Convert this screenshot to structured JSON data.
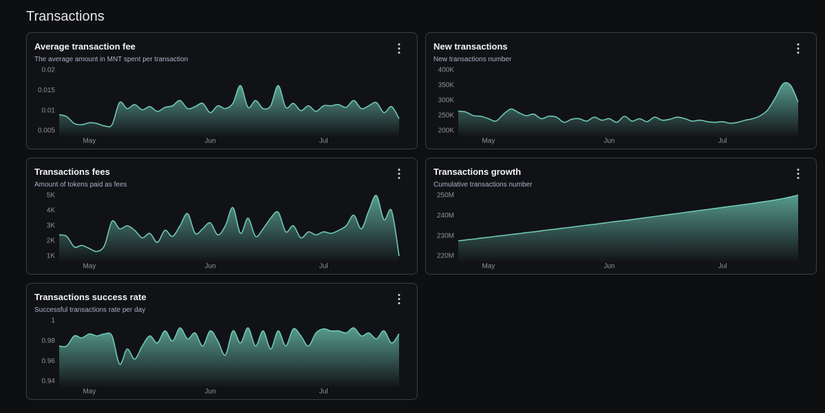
{
  "title": "Transactions",
  "chart_data": [
    {
      "type": "area",
      "title": "Average transaction fee",
      "subtitle": "The average amount in MNT spent per transaction",
      "color": "#6fc9b6",
      "categories": [
        null,
        null,
        null,
        null,
        "May",
        null,
        null,
        null,
        null,
        null,
        null,
        null,
        null,
        null,
        null,
        null,
        null,
        null,
        null,
        null,
        "Jun",
        null,
        null,
        null,
        null,
        null,
        null,
        null,
        null,
        null,
        null,
        null,
        null,
        null,
        null,
        "Jul",
        null,
        null,
        null,
        null,
        null,
        null,
        null,
        null,
        null,
        null
      ],
      "values": [
        0.009,
        0.0085,
        0.0068,
        0.0065,
        0.007,
        0.0068,
        0.0062,
        0.0065,
        0.012,
        0.0105,
        0.0115,
        0.0102,
        0.011,
        0.0098,
        0.0108,
        0.0112,
        0.0125,
        0.0105,
        0.011,
        0.0118,
        0.0095,
        0.0112,
        0.0105,
        0.0118,
        0.0162,
        0.0108,
        0.0125,
        0.0105,
        0.0112,
        0.0162,
        0.0108,
        0.0118,
        0.01,
        0.0112,
        0.0098,
        0.0112,
        0.0112,
        0.0115,
        0.0108,
        0.0125,
        0.0105,
        0.0112,
        0.012,
        0.0095,
        0.011,
        0.008
      ],
      "ylim": [
        0.005,
        0.02
      ],
      "yticks": [
        0.005,
        0.01,
        0.015,
        0.02
      ]
    },
    {
      "type": "area",
      "title": "New transactions",
      "subtitle": "New transactions number",
      "color": "#6fc9b6",
      "categories": [
        null,
        null,
        null,
        null,
        "May",
        null,
        null,
        null,
        null,
        null,
        null,
        null,
        null,
        null,
        null,
        null,
        null,
        null,
        null,
        null,
        "Jun",
        null,
        null,
        null,
        null,
        null,
        null,
        null,
        null,
        null,
        null,
        null,
        null,
        null,
        null,
        "Jul",
        null,
        null,
        null,
        null,
        null,
        null,
        null,
        null,
        null,
        null
      ],
      "values": [
        265000,
        262000,
        250000,
        248000,
        240000,
        232000,
        255000,
        272000,
        260000,
        250000,
        255000,
        240000,
        248000,
        245000,
        228000,
        238000,
        240000,
        232000,
        245000,
        235000,
        240000,
        228000,
        248000,
        232000,
        240000,
        230000,
        245000,
        235000,
        238000,
        245000,
        240000,
        232000,
        235000,
        230000,
        228000,
        230000,
        225000,
        228000,
        235000,
        240000,
        250000,
        270000,
        310000,
        355000,
        350000,
        295000
      ],
      "ylim": [
        200000,
        400000
      ],
      "yticks": [
        {
          "value": 200000,
          "label": "200K"
        },
        {
          "value": 250000,
          "label": "250K"
        },
        {
          "value": 300000,
          "label": "300K"
        },
        {
          "value": 350000,
          "label": "350K"
        },
        {
          "value": 400000,
          "label": "400K"
        }
      ]
    },
    {
      "type": "area",
      "title": "Transactions fees",
      "subtitle": "Amount of tokens paid as fees",
      "color": "#6fc9b6",
      "categories": [
        null,
        null,
        null,
        null,
        "May",
        null,
        null,
        null,
        null,
        null,
        null,
        null,
        null,
        null,
        null,
        null,
        null,
        null,
        null,
        null,
        "Jun",
        null,
        null,
        null,
        null,
        null,
        null,
        null,
        null,
        null,
        null,
        null,
        null,
        null,
        null,
        "Jul",
        null,
        null,
        null,
        null,
        null,
        null,
        null,
        null,
        null,
        null
      ],
      "values": [
        2400,
        2300,
        1600,
        1700,
        1500,
        1300,
        1700,
        3300,
        2800,
        3000,
        2700,
        2200,
        2500,
        1900,
        2700,
        2300,
        3000,
        3800,
        2500,
        2800,
        3200,
        2400,
        3000,
        4200,
        2500,
        3500,
        2300,
        2800,
        3500,
        3900,
        2600,
        3000,
        2200,
        2600,
        2400,
        2600,
        2500,
        2700,
        3000,
        3700,
        2800,
        4000,
        5000,
        3400,
        4000,
        1000
      ],
      "ylim": [
        1000,
        5000
      ],
      "yticks": [
        {
          "value": 1000,
          "label": "1K"
        },
        {
          "value": 2000,
          "label": "2K"
        },
        {
          "value": 3000,
          "label": "3K"
        },
        {
          "value": 4000,
          "label": "4K"
        },
        {
          "value": 5000,
          "label": "5K"
        }
      ]
    },
    {
      "type": "area",
      "title": "Transactions growth",
      "subtitle": "Cumulative transactions number",
      "color": "#6fc9b6",
      "categories": [
        null,
        null,
        null,
        null,
        "May",
        null,
        null,
        null,
        null,
        null,
        null,
        null,
        null,
        null,
        null,
        null,
        null,
        null,
        null,
        null,
        "Jun",
        null,
        null,
        null,
        null,
        null,
        null,
        null,
        null,
        null,
        null,
        null,
        null,
        null,
        null,
        "Jul",
        null,
        null,
        null,
        null,
        null,
        null,
        null,
        null,
        null,
        null
      ],
      "values": [
        227500000,
        228000000,
        228400000,
        228900000,
        229300000,
        229800000,
        230200000,
        230700000,
        231100000,
        231600000,
        232000000,
        232500000,
        233000000,
        233400000,
        233900000,
        234300000,
        234800000,
        235300000,
        235700000,
        236200000,
        236700000,
        237200000,
        237600000,
        238100000,
        238600000,
        239100000,
        239600000,
        240100000,
        240600000,
        241100000,
        241600000,
        242100000,
        242600000,
        243100000,
        243600000,
        244100000,
        244600000,
        245100000,
        245600000,
        246100000,
        246700000,
        247200000,
        247800000,
        248500000,
        249300000,
        250200000
      ],
      "ylim": [
        220000000,
        250000000
      ],
      "yticks": [
        {
          "value": 220000000,
          "label": "220M"
        },
        {
          "value": 230000000,
          "label": "230M"
        },
        {
          "value": 240000000,
          "label": "240M"
        },
        {
          "value": 250000000,
          "label": "250M"
        }
      ]
    },
    {
      "type": "area",
      "title": "Transactions success rate",
      "subtitle": "Successful transactions rate per day",
      "color": "#6fc9b6",
      "categories": [
        null,
        null,
        null,
        null,
        "May",
        null,
        null,
        null,
        null,
        null,
        null,
        null,
        null,
        null,
        null,
        null,
        null,
        null,
        null,
        null,
        "Jun",
        null,
        null,
        null,
        null,
        null,
        null,
        null,
        null,
        null,
        null,
        null,
        null,
        null,
        null,
        "Jul",
        null,
        null,
        null,
        null,
        null,
        null,
        null,
        null,
        null,
        null
      ],
      "values": [
        0.975,
        0.975,
        0.985,
        0.983,
        0.987,
        0.985,
        0.987,
        0.985,
        0.957,
        0.972,
        0.962,
        0.975,
        0.985,
        0.978,
        0.99,
        0.98,
        0.993,
        0.982,
        0.988,
        0.975,
        0.99,
        0.98,
        0.966,
        0.99,
        0.978,
        0.993,
        0.975,
        0.99,
        0.972,
        0.99,
        0.975,
        0.992,
        0.985,
        0.975,
        0.988,
        0.992,
        0.99,
        0.99,
        0.988,
        0.993,
        0.985,
        0.988,
        0.982,
        0.99,
        0.978,
        0.987
      ],
      "ylim": [
        0.94,
        1
      ],
      "yticks": [
        0.94,
        0.96,
        0.98,
        1
      ]
    }
  ]
}
